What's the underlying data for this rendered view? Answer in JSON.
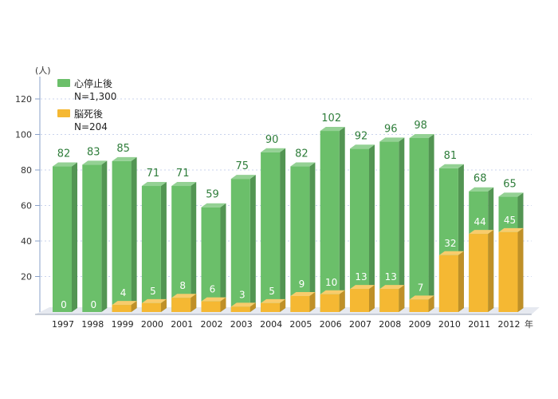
{
  "chart_data": {
    "type": "bar",
    "y_unit": "(人)",
    "x_unit": "年",
    "ylim": [
      0,
      120
    ],
    "yticks": [
      20,
      40,
      60,
      80,
      100,
      120
    ],
    "grid": true,
    "legend_position": "top-left",
    "categories": [
      "1997",
      "1998",
      "1999",
      "2000",
      "2001",
      "2002",
      "2003",
      "2004",
      "2005",
      "2006",
      "2007",
      "2008",
      "2009",
      "2010",
      "2011",
      "2012"
    ],
    "series": [
      {
        "name": "心停止後",
        "total": "N=1,300",
        "color": "#6bbf6a",
        "values": [
          82,
          83,
          85,
          71,
          71,
          59,
          75,
          90,
          82,
          102,
          92,
          96,
          98,
          81,
          68,
          65
        ]
      },
      {
        "name": "脳死後",
        "total": "N=204",
        "color": "#f5b833",
        "values": [
          0,
          0,
          4,
          5,
          8,
          6,
          3,
          5,
          9,
          10,
          13,
          13,
          7,
          32,
          44,
          45
        ]
      }
    ]
  }
}
